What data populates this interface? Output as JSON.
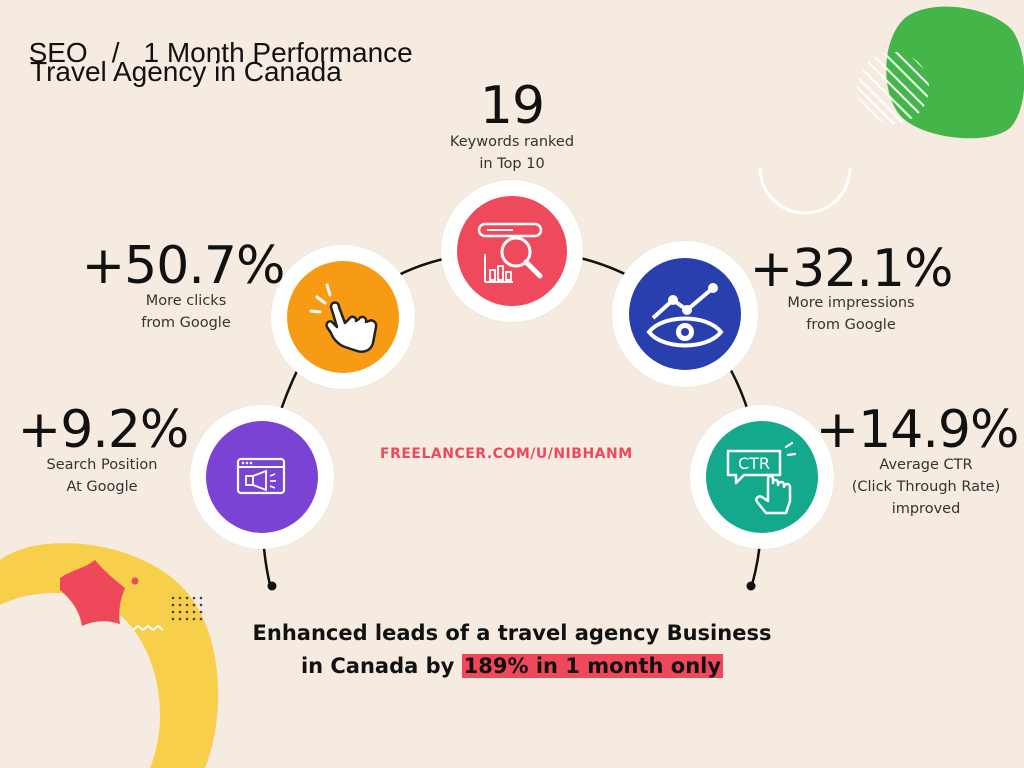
{
  "header": {
    "seo": "SEO",
    "slash": "/",
    "period": "1 Month Performance",
    "subtitle": "Travel Agency in Canada"
  },
  "stats": {
    "keywords": {
      "value": "19",
      "line1": "Keywords ranked",
      "line2": "in Top 10"
    },
    "clicks": {
      "value": "+50.7%",
      "line1": "More clicks",
      "line2": "from Google"
    },
    "impressions": {
      "value": "+32.1%",
      "line1": "More impressions",
      "line2": "from Google"
    },
    "position": {
      "value": "+9.2%",
      "line1": "Search Position",
      "line2": "At Google"
    },
    "ctr": {
      "value": "+14.9%",
      "line1": "Average CTR",
      "line2": "(Click Through Rate)",
      "line3": "improved"
    }
  },
  "icons": {
    "keywords": {
      "name": "search-analytics-icon",
      "color": "#ef4a5c"
    },
    "clicks": {
      "name": "pointer-click-icon",
      "color": "#f79a14"
    },
    "impressions": {
      "name": "eye-growth-icon",
      "color": "#2a3fae"
    },
    "position": {
      "name": "browser-megaphone-icon",
      "color": "#7a43d4"
    },
    "ctr": {
      "name": "ctr-click-icon",
      "color": "#14a98c"
    }
  },
  "ctr_badge": "CTR",
  "watermark": "FREELANCER.COM/U/NIBHANM",
  "footer": {
    "line1": "Enhanced leads of a travel agency Business",
    "line2_prefix": "in Canada by ",
    "line2_highlight": "189% in 1 month only"
  },
  "colors": {
    "background": "#f5ebe0",
    "accent_red": "#f0485b",
    "green_shape": "#44b548",
    "yellow_shape": "#f7cf4a"
  }
}
